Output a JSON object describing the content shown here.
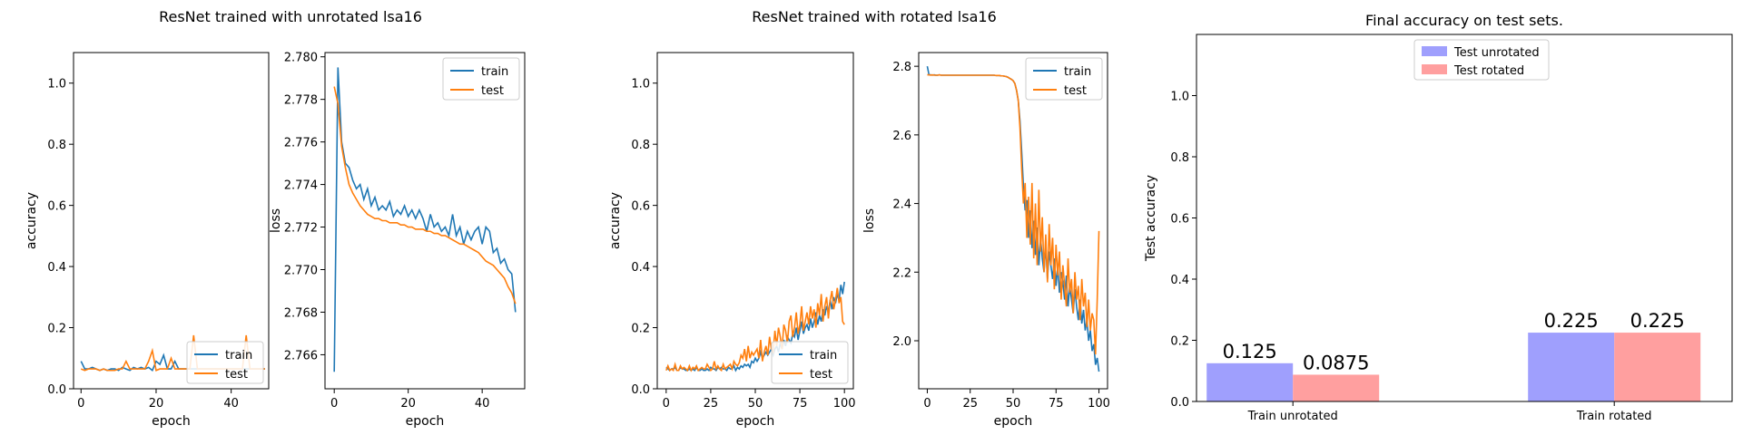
{
  "chart_data": [
    {
      "type": "line",
      "title": "ResNet trained with unrotated lsa16",
      "xlabel": "epoch",
      "ylabel": "accuracy",
      "xlim": [
        -2,
        50
      ],
      "ylim": [
        0,
        1.1
      ],
      "xticks": [
        0,
        20,
        40
      ],
      "yticks": [
        0.0,
        0.2,
        0.4,
        0.6,
        0.8,
        1.0
      ],
      "ytick_labels": [
        "0.0",
        "0.2",
        "0.4",
        "0.6",
        "0.8",
        "1.0"
      ],
      "legend_loc": "lower-right",
      "series": [
        {
          "name": "train",
          "color": "#1f77b4",
          "x_start": 0,
          "values": [
            0.09,
            0.065,
            0.065,
            0.07,
            0.065,
            0.06,
            0.065,
            0.06,
            0.065,
            0.065,
            0.06,
            0.07,
            0.065,
            0.06,
            0.07,
            0.065,
            0.07,
            0.065,
            0.07,
            0.06,
            0.09,
            0.08,
            0.11,
            0.065,
            0.065,
            0.09,
            0.065,
            0.065,
            0.065,
            0.065,
            0.065,
            0.065,
            0.065,
            0.065,
            0.065,
            0.065,
            0.065,
            0.065,
            0.065,
            0.065,
            0.065,
            0.065,
            0.065,
            0.065,
            0.065,
            0.065,
            0.065,
            0.065,
            0.065,
            0.065
          ]
        },
        {
          "name": "test",
          "color": "#ff7f0e",
          "x_start": 0,
          "values": [
            0.065,
            0.06,
            0.065,
            0.065,
            0.065,
            0.06,
            0.065,
            0.06,
            0.06,
            0.06,
            0.065,
            0.065,
            0.09,
            0.065,
            0.065,
            0.065,
            0.065,
            0.065,
            0.09,
            0.125,
            0.06,
            0.065,
            0.065,
            0.065,
            0.1,
            0.065,
            0.065,
            0.065,
            0.065,
            0.065,
            0.175,
            0.065,
            0.065,
            0.065,
            0.065,
            0.065,
            0.065,
            0.065,
            0.065,
            0.065,
            0.065,
            0.065,
            0.065,
            0.065,
            0.175,
            0.065,
            0.065,
            0.065,
            0.065,
            0.065
          ]
        }
      ]
    },
    {
      "type": "line",
      "title": "",
      "xlabel": "epoch",
      "ylabel": "loss",
      "xlim": [
        -2.5,
        51.5
      ],
      "ylim": [
        2.7644,
        2.7802
      ],
      "xticks": [
        0,
        20,
        40
      ],
      "yticks": [
        2.766,
        2.768,
        2.77,
        2.772,
        2.774,
        2.776,
        2.778,
        2.78
      ],
      "ytick_labels": [
        "2.766",
        "2.768",
        "2.770",
        "2.772",
        "2.774",
        "2.776",
        "2.778",
        "2.780"
      ],
      "legend_loc": "upper-right",
      "series": [
        {
          "name": "train",
          "color": "#1f77b4",
          "x_start": 0,
          "values": [
            2.7652,
            2.7795,
            2.776,
            2.775,
            2.7748,
            2.7742,
            2.7738,
            2.774,
            2.7733,
            2.7738,
            2.773,
            2.7734,
            2.7728,
            2.773,
            2.7728,
            2.7732,
            2.7725,
            2.7728,
            2.7726,
            2.773,
            2.7725,
            2.7728,
            2.7724,
            2.7728,
            2.7724,
            2.7718,
            2.7726,
            2.772,
            2.7722,
            2.7718,
            2.772,
            2.7716,
            2.7726,
            2.7716,
            2.772,
            2.7712,
            2.7718,
            2.7714,
            2.7718,
            2.772,
            2.7712,
            2.772,
            2.7718,
            2.7708,
            2.771,
            2.7703,
            2.7705,
            2.77,
            2.7698,
            2.768
          ]
        },
        {
          "name": "test",
          "color": "#ff7f0e",
          "x_start": 0,
          "values": [
            2.7786,
            2.7778,
            2.7758,
            2.7748,
            2.774,
            2.7736,
            2.7733,
            2.773,
            2.7728,
            2.7726,
            2.7725,
            2.7724,
            2.7724,
            2.7723,
            2.7723,
            2.7722,
            2.7722,
            2.7722,
            2.7721,
            2.7721,
            2.772,
            2.772,
            2.7719,
            2.7719,
            2.7719,
            2.7718,
            2.7718,
            2.7717,
            2.7717,
            2.7716,
            2.7716,
            2.7715,
            2.7714,
            2.7713,
            2.7712,
            2.7712,
            2.7711,
            2.771,
            2.7709,
            2.7708,
            2.7706,
            2.7704,
            2.7703,
            2.7702,
            2.77,
            2.7698,
            2.7696,
            2.7692,
            2.7689,
            2.7684
          ]
        }
      ]
    },
    {
      "type": "line",
      "title": "ResNet trained with rotated lsa16",
      "xlabel": "epoch",
      "ylabel": "accuracy",
      "xlim": [
        -5,
        105
      ],
      "ylim": [
        0,
        1.1
      ],
      "xticks": [
        0,
        25,
        50,
        75,
        100
      ],
      "yticks": [
        0.0,
        0.2,
        0.4,
        0.6,
        0.8,
        1.0
      ],
      "ytick_labels": [
        "0.0",
        "0.2",
        "0.4",
        "0.6",
        "0.8",
        "1.0"
      ],
      "legend_loc": "lower-right",
      "series": [
        {
          "name": "train",
          "color": "#1f77b4",
          "x_start": 0,
          "values": [
            0.07,
            0.065,
            0.06,
            0.065,
            0.065,
            0.07,
            0.06,
            0.06,
            0.07,
            0.065,
            0.065,
            0.06,
            0.06,
            0.065,
            0.06,
            0.065,
            0.06,
            0.07,
            0.06,
            0.06,
            0.065,
            0.06,
            0.06,
            0.065,
            0.06,
            0.07,
            0.065,
            0.065,
            0.06,
            0.07,
            0.065,
            0.07,
            0.065,
            0.065,
            0.06,
            0.07,
            0.065,
            0.065,
            0.075,
            0.06,
            0.07,
            0.065,
            0.075,
            0.07,
            0.08,
            0.075,
            0.08,
            0.07,
            0.09,
            0.085,
            0.1,
            0.09,
            0.1,
            0.12,
            0.1,
            0.11,
            0.12,
            0.11,
            0.12,
            0.13,
            0.11,
            0.13,
            0.14,
            0.12,
            0.15,
            0.13,
            0.16,
            0.14,
            0.17,
            0.16,
            0.15,
            0.18,
            0.17,
            0.2,
            0.16,
            0.19,
            0.22,
            0.18,
            0.2,
            0.21,
            0.19,
            0.23,
            0.2,
            0.22,
            0.25,
            0.21,
            0.24,
            0.22,
            0.26,
            0.24,
            0.27,
            0.25,
            0.29,
            0.26,
            0.3,
            0.28,
            0.31,
            0.29,
            0.34,
            0.31,
            0.35
          ]
        },
        {
          "name": "test",
          "color": "#ff7f0e",
          "x_start": 0,
          "values": [
            0.06,
            0.075,
            0.06,
            0.065,
            0.06,
            0.08,
            0.06,
            0.06,
            0.075,
            0.065,
            0.07,
            0.065,
            0.06,
            0.075,
            0.06,
            0.07,
            0.065,
            0.075,
            0.06,
            0.065,
            0.07,
            0.065,
            0.065,
            0.08,
            0.07,
            0.06,
            0.065,
            0.09,
            0.065,
            0.075,
            0.065,
            0.06,
            0.08,
            0.065,
            0.07,
            0.075,
            0.08,
            0.065,
            0.09,
            0.08,
            0.075,
            0.085,
            0.11,
            0.1,
            0.13,
            0.09,
            0.14,
            0.1,
            0.12,
            0.11,
            0.12,
            0.13,
            0.1,
            0.16,
            0.09,
            0.12,
            0.14,
            0.11,
            0.17,
            0.13,
            0.12,
            0.19,
            0.14,
            0.2,
            0.17,
            0.13,
            0.21,
            0.19,
            0.15,
            0.22,
            0.24,
            0.17,
            0.2,
            0.25,
            0.18,
            0.21,
            0.27,
            0.19,
            0.22,
            0.25,
            0.21,
            0.27,
            0.23,
            0.26,
            0.2,
            0.28,
            0.24,
            0.31,
            0.22,
            0.27,
            0.3,
            0.23,
            0.29,
            0.32,
            0.26,
            0.29,
            0.33,
            0.28,
            0.3,
            0.22,
            0.21
          ]
        }
      ]
    },
    {
      "type": "line",
      "title": "",
      "xlabel": "epoch",
      "ylabel": "loss",
      "xlim": [
        -5,
        105
      ],
      "ylim": [
        1.86,
        2.84
      ],
      "xticks": [
        0,
        25,
        50,
        75,
        100
      ],
      "yticks": [
        2.0,
        2.2,
        2.4,
        2.6,
        2.8
      ],
      "ytick_labels": [
        "2.0",
        "2.2",
        "2.4",
        "2.6",
        "2.8"
      ],
      "legend_loc": "upper-right",
      "series": [
        {
          "name": "train",
          "color": "#1f77b4",
          "x_start": 0,
          "values": [
            2.8,
            2.775,
            2.775,
            2.774,
            2.775,
            2.774,
            2.774,
            2.775,
            2.774,
            2.774,
            2.774,
            2.774,
            2.774,
            2.774,
            2.774,
            2.774,
            2.774,
            2.774,
            2.774,
            2.774,
            2.774,
            2.774,
            2.774,
            2.774,
            2.774,
            2.774,
            2.774,
            2.774,
            2.774,
            2.774,
            2.774,
            2.774,
            2.774,
            2.774,
            2.774,
            2.774,
            2.774,
            2.774,
            2.774,
            2.774,
            2.773,
            2.773,
            2.773,
            2.772,
            2.772,
            2.771,
            2.77,
            2.768,
            2.765,
            2.762,
            2.758,
            2.75,
            2.73,
            2.7,
            2.64,
            2.55,
            2.45,
            2.38,
            2.41,
            2.3,
            2.38,
            2.27,
            2.35,
            2.25,
            2.33,
            2.22,
            2.3,
            2.24,
            2.2,
            2.28,
            2.18,
            2.26,
            2.22,
            2.18,
            2.24,
            2.16,
            2.22,
            2.14,
            2.2,
            2.17,
            2.12,
            2.19,
            2.1,
            2.16,
            2.12,
            2.08,
            2.15,
            2.1,
            2.06,
            2.12,
            2.05,
            2.09,
            2.03,
            2.06,
            2.0,
            2.03,
            1.97,
            1.99,
            1.93,
            1.95,
            1.91
          ]
        },
        {
          "name": "test",
          "color": "#ff7f0e",
          "x_start": 0,
          "values": [
            2.775,
            2.775,
            2.774,
            2.775,
            2.774,
            2.774,
            2.774,
            2.775,
            2.774,
            2.774,
            2.774,
            2.774,
            2.774,
            2.774,
            2.774,
            2.774,
            2.774,
            2.774,
            2.774,
            2.774,
            2.774,
            2.774,
            2.774,
            2.774,
            2.774,
            2.774,
            2.774,
            2.774,
            2.774,
            2.774,
            2.774,
            2.774,
            2.774,
            2.774,
            2.774,
            2.774,
            2.774,
            2.774,
            2.774,
            2.774,
            2.773,
            2.773,
            2.773,
            2.772,
            2.772,
            2.771,
            2.77,
            2.768,
            2.765,
            2.762,
            2.758,
            2.75,
            2.73,
            2.7,
            2.62,
            2.5,
            2.4,
            2.46,
            2.3,
            2.42,
            2.28,
            2.46,
            2.24,
            2.4,
            2.22,
            2.44,
            2.26,
            2.36,
            2.2,
            2.31,
            2.17,
            2.34,
            2.22,
            2.3,
            2.15,
            2.28,
            2.19,
            2.26,
            2.12,
            2.22,
            2.16,
            2.1,
            2.24,
            2.14,
            2.18,
            2.08,
            2.2,
            2.12,
            2.16,
            2.06,
            2.18,
            2.1,
            2.14,
            2.04,
            2.12,
            2.03,
            2.08,
            2.06,
            1.96,
            2.12,
            2.32
          ]
        }
      ]
    },
    {
      "type": "bar",
      "title": "Final accuracy on test sets.",
      "xlabel": "",
      "ylabel": "Test accuracy",
      "categories": [
        "Train unrotated",
        "Train rotated"
      ],
      "ylim": [
        0,
        1.2
      ],
      "yticks": [
        0.0,
        0.2,
        0.4,
        0.6,
        0.8,
        1.0
      ],
      "ytick_labels": [
        "0.0",
        "0.2",
        "0.4",
        "0.6",
        "0.8",
        "1.0"
      ],
      "legend_loc": "upper-center",
      "series": [
        {
          "name": "Test unrotated",
          "color": "#9f9ffd",
          "values": [
            0.125,
            0.225
          ],
          "labels": [
            "0.125",
            "0.225"
          ]
        },
        {
          "name": "Test rotated",
          "color": "#ff9f9f",
          "values": [
            0.0875,
            0.225
          ],
          "labels": [
            "0.0875",
            "0.225"
          ]
        }
      ]
    }
  ]
}
